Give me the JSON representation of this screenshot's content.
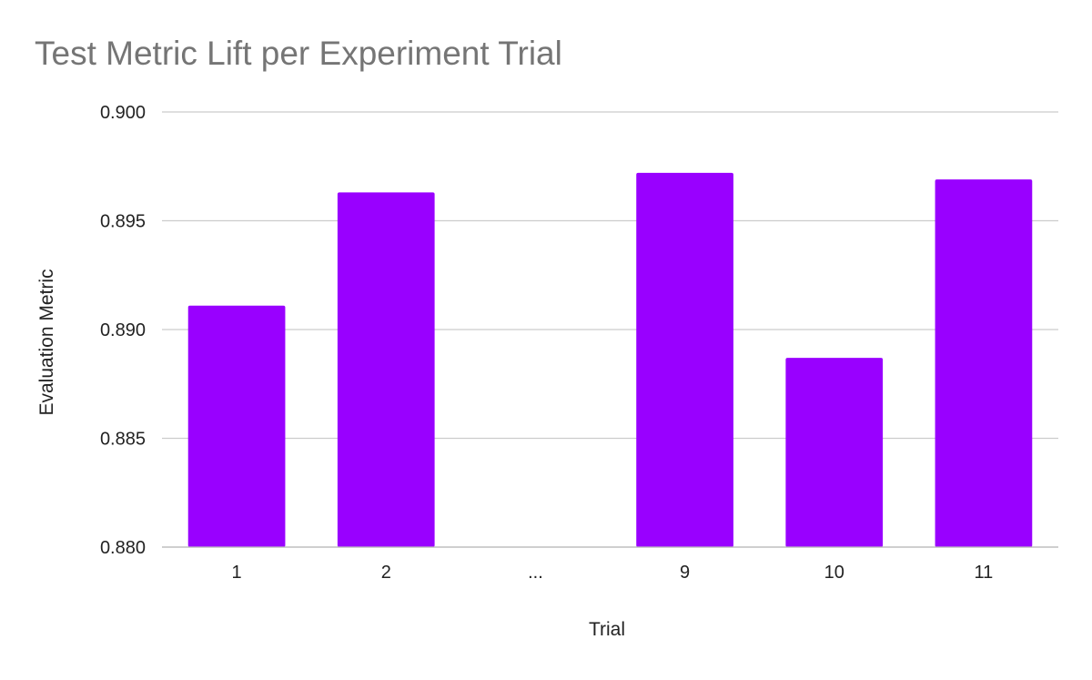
{
  "chart_data": {
    "type": "bar",
    "title": "Test Metric Lift per Experiment Trial",
    "xlabel": "Trial",
    "ylabel": "Evaluation Metric",
    "categories": [
      "1",
      "2",
      "...",
      "9",
      "10",
      "11"
    ],
    "values": [
      0.8911,
      0.8963,
      null,
      0.8972,
      0.8887,
      0.8969
    ],
    "ylim": [
      0.88,
      0.9
    ],
    "yticks": [
      "0.880",
      "0.885",
      "0.890",
      "0.895",
      "0.900"
    ],
    "ytick_values": [
      0.88,
      0.885,
      0.89,
      0.895,
      0.9
    ],
    "grid": true,
    "legend": "none",
    "bar_color": "#9900ff",
    "gridline_color": "#cccccc",
    "title_color": "#757575"
  }
}
